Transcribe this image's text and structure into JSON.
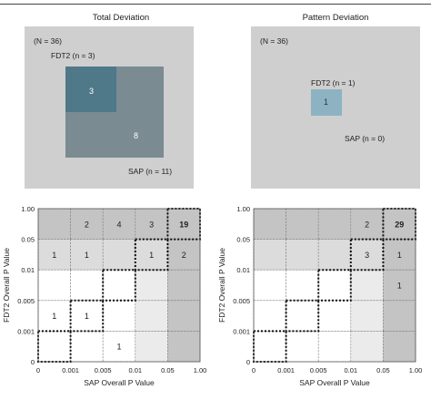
{
  "colors": {
    "background": "#cfcfcf",
    "cell_dark": "#c4c4c4",
    "cell_mid": "#dcdcdc",
    "cell_light": "#ebebeb",
    "cell_white": "#ffffff",
    "venn_fdt2": "#5f8796",
    "venn_sap": "#7a8b92",
    "venn_overlap": "#3f6a7b",
    "venn_fdt2_only": "#8db3c2"
  },
  "total_deviation": {
    "title": "Total Deviation",
    "venn": {
      "n_total": "(N = 36)",
      "fdt2_label": "FDT2 (n = 3)",
      "sap_label": "SAP (n = 11)",
      "overlap_count": "3",
      "sap_only_count": "8"
    }
  },
  "pattern_deviation": {
    "title": "Pattern Deviation",
    "venn": {
      "n_total": "(N = 36)",
      "fdt2_label": "FDT2 (n = 1)",
      "sap_label": "SAP (n = 0)",
      "fdt2_only_count": "1"
    }
  },
  "chart_data": [
    {
      "type": "heatmap",
      "panel": "Total Deviation",
      "xlabel": "SAP Overall P Value",
      "ylabel": "FDT2 Overall P Value",
      "x_ticks": [
        "0",
        "0.001",
        "0.005",
        "0.01",
        "0.05",
        "1.00"
      ],
      "y_ticks": [
        "0",
        "0.001",
        "0.005",
        "0.01",
        "0.05",
        "1.00"
      ],
      "cells_top_to_bottom": [
        [
          "",
          "2",
          "4",
          "3",
          "19"
        ],
        [
          "1",
          "1",
          "",
          "1",
          "2"
        ],
        [
          "",
          "",
          "",
          "",
          ""
        ],
        [
          "1",
          "1",
          "",
          "",
          ""
        ],
        [
          "",
          "",
          "1",
          "",
          ""
        ]
      ],
      "shade_top_to_bottom": [
        [
          3,
          3,
          3,
          3,
          3
        ],
        [
          2,
          2,
          2,
          2,
          3
        ],
        [
          0,
          0,
          0,
          1,
          3
        ],
        [
          0,
          0,
          0,
          1,
          3
        ],
        [
          0,
          0,
          0,
          1,
          3
        ]
      ],
      "bold_cells": [
        [
          0,
          4
        ]
      ]
    },
    {
      "type": "heatmap",
      "panel": "Pattern Deviation",
      "xlabel": "SAP Overall P Value",
      "ylabel": "FDT2 Overall P Value",
      "x_ticks": [
        "0",
        "0.001",
        "0.005",
        "0.01",
        "0.05",
        "1.00"
      ],
      "y_ticks": [
        "0",
        "0.001",
        "0.005",
        "0.01",
        "0.05",
        "1.00"
      ],
      "cells_top_to_bottom": [
        [
          "",
          "",
          "",
          "2",
          "29"
        ],
        [
          "",
          "",
          "",
          "3",
          "1"
        ],
        [
          "",
          "",
          "",
          "",
          "1"
        ],
        [
          "",
          "",
          "",
          "",
          ""
        ],
        [
          "",
          "",
          "",
          "",
          ""
        ]
      ],
      "shade_top_to_bottom": [
        [
          3,
          3,
          3,
          3,
          3
        ],
        [
          2,
          2,
          2,
          2,
          3
        ],
        [
          0,
          0,
          0,
          1,
          3
        ],
        [
          0,
          0,
          0,
          1,
          3
        ],
        [
          0,
          0,
          0,
          1,
          3
        ]
      ],
      "bold_cells": [
        [
          0,
          4
        ]
      ]
    }
  ]
}
